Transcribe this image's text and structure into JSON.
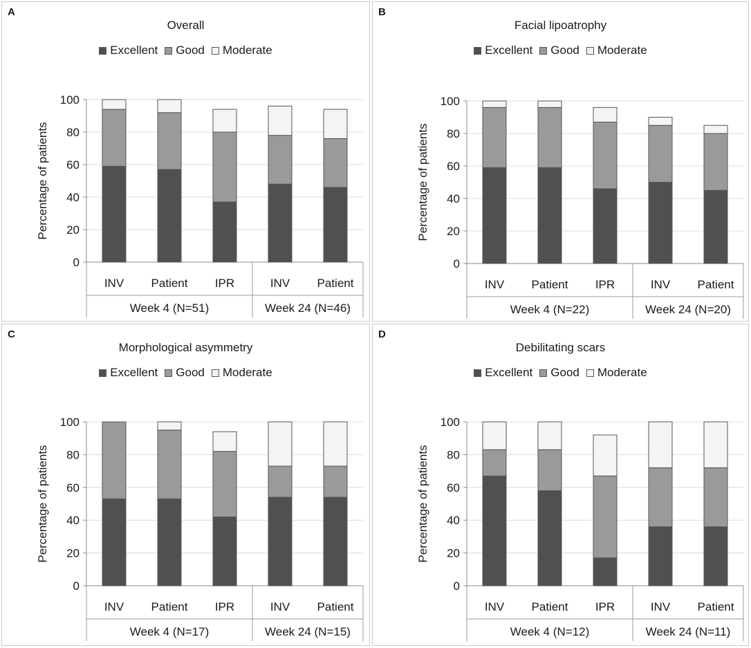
{
  "colors": {
    "excellent": "#505050",
    "good": "#9a9a9a",
    "moderate": "#f4f4f4",
    "grid": "#dcdcdc"
  },
  "legend": [
    "Excellent",
    "Good",
    "Moderate"
  ],
  "y_axis_label": "Percentage of patients",
  "chart_data": [
    {
      "panel": "A",
      "type": "bar",
      "stacked": true,
      "title": "Overall",
      "ylabel": "Percentage of patients",
      "ylim": [
        0,
        100
      ],
      "yticks": [
        0,
        20,
        40,
        60,
        80,
        100
      ],
      "categories": [
        "INV",
        "Patient",
        "IPR",
        "INV",
        "Patient"
      ],
      "groups": [
        {
          "label": "Week 4 (N=51)",
          "count": 3
        },
        {
          "label": "Week 24 (N=46)",
          "count": 2
        }
      ],
      "series": [
        {
          "name": "Excellent",
          "values": [
            59,
            57,
            37,
            48,
            46
          ]
        },
        {
          "name": "Good",
          "values": [
            35,
            35,
            43,
            30,
            30
          ]
        },
        {
          "name": "Moderate",
          "values": [
            6,
            8,
            14,
            18,
            18
          ]
        }
      ]
    },
    {
      "panel": "B",
      "type": "bar",
      "stacked": true,
      "title": "Facial lipoatrophy",
      "ylabel": "Percentage of patients",
      "ylim": [
        0,
        100
      ],
      "yticks": [
        0,
        20,
        40,
        60,
        80,
        100
      ],
      "categories": [
        "INV",
        "Patient",
        "IPR",
        "INV",
        "Patient"
      ],
      "groups": [
        {
          "label": "Week 4 (N=22)",
          "count": 3
        },
        {
          "label": "Week 24 (N=20)",
          "count": 2
        }
      ],
      "series": [
        {
          "name": "Excellent",
          "values": [
            59,
            59,
            46,
            50,
            45
          ]
        },
        {
          "name": "Good",
          "values": [
            37,
            37,
            41,
            35,
            35
          ]
        },
        {
          "name": "Moderate",
          "values": [
            4,
            4,
            9,
            5,
            5
          ]
        }
      ]
    },
    {
      "panel": "C",
      "type": "bar",
      "stacked": true,
      "title": "Morphological asymmetry",
      "ylabel": "Percentage of patients",
      "ylim": [
        0,
        100
      ],
      "yticks": [
        0,
        20,
        40,
        60,
        80,
        100
      ],
      "categories": [
        "INV",
        "Patient",
        "IPR",
        "INV",
        "Patient"
      ],
      "groups": [
        {
          "label": "Week 4 (N=17)",
          "count": 3
        },
        {
          "label": "Week 24 (N=15)",
          "count": 2
        }
      ],
      "series": [
        {
          "name": "Excellent",
          "values": [
            53,
            53,
            42,
            54,
            54
          ]
        },
        {
          "name": "Good",
          "values": [
            47,
            42,
            40,
            19,
            19
          ]
        },
        {
          "name": "Moderate",
          "values": [
            0,
            5,
            12,
            27,
            27
          ]
        }
      ]
    },
    {
      "panel": "D",
      "type": "bar",
      "stacked": true,
      "title": "Debilitating scars",
      "ylabel": "Percentage of patients",
      "ylim": [
        0,
        100
      ],
      "yticks": [
        0,
        20,
        40,
        60,
        80,
        100
      ],
      "categories": [
        "INV",
        "Patient",
        "IPR",
        "INV",
        "Patient"
      ],
      "groups": [
        {
          "label": "Week 4 (N=12)",
          "count": 3
        },
        {
          "label": "Week 24 (N=11)",
          "count": 2
        }
      ],
      "series": [
        {
          "name": "Excellent",
          "values": [
            67,
            58,
            17,
            36,
            36
          ]
        },
        {
          "name": "Good",
          "values": [
            16,
            25,
            50,
            36,
            36
          ]
        },
        {
          "name": "Moderate",
          "values": [
            17,
            17,
            25,
            28,
            28
          ]
        }
      ]
    }
  ]
}
